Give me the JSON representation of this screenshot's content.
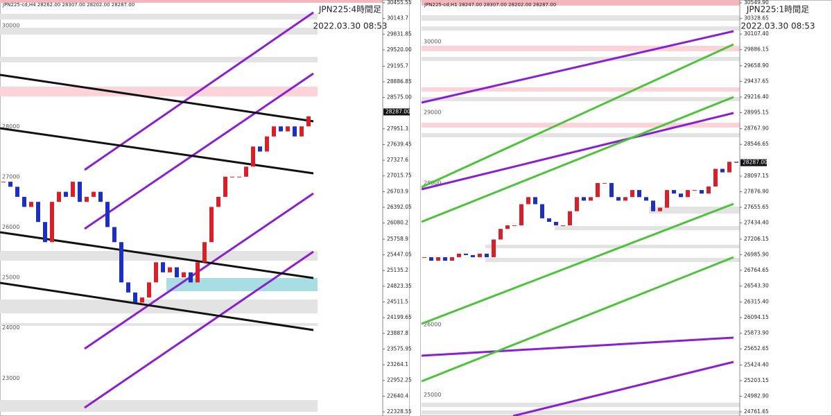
{
  "chart_data": [
    {
      "type": "candlestick",
      "header": "JPN225-cd,H4  28262.00 28307.00 28202.00 28287.00",
      "title": "JPN225:4時間足",
      "timestamp": "2022.03.30 08:53",
      "price_tag": {
        "value": 28287,
        "label": "28287.00"
      },
      "ylim": [
        22328.55,
        30455.55
      ],
      "yticks": [
        30455.55,
        30143.7,
        29831.85,
        {
          "value": 29520,
          "label": "29520.00"
        },
        29195.7,
        28886.85,
        {
          "value": 28575,
          "label": "28575.00"
        },
        27951.3,
        27639.45,
        27327.6,
        27015.75,
        26703.9,
        26392.05,
        26080.2,
        25758.9,
        25447.05,
        25135.2,
        24823.35,
        24511.5,
        24199.65,
        23887.8,
        23575.95,
        23264.1,
        22952.25,
        22640.4,
        22328.55
      ],
      "level_labels": [
        30000,
        28000,
        27000,
        26000,
        25000,
        24000,
        23000
      ],
      "up_color": "#d8202a",
      "down_color": "#1c2fbf",
      "values": [
        26900,
        26800,
        26600,
        26400,
        26500,
        26100,
        25700,
        26500,
        26700,
        26600,
        26900,
        26500,
        26600,
        26700,
        26500,
        26000,
        25700,
        24900,
        24700,
        24500,
        24600,
        24900,
        25300,
        25100,
        25200,
        25000,
        25100,
        24900,
        25300,
        25700,
        26400,
        26600,
        27000,
        27000,
        27000,
        27200,
        27600,
        27500,
        27800,
        28000,
        27900,
        28000,
        27800,
        28000,
        28200
      ]
    },
    {
      "type": "candlestick",
      "header": "JPN225-cd,H1  28247.00 28307.00 28202.00 28287.00",
      "title": "JPN225:1時間足",
      "timestamp": "2022.03.30 08:53",
      "price_tag": {
        "value": 28287,
        "label": "28287.00"
      },
      "ylim": [
        24761.65,
        30549.9
      ],
      "yticks": [
        {
          "value": 30549.9,
          "label": "30549.90"
        },
        30328.65,
        {
          "value": 30107.4,
          "label": "30107.40"
        },
        29886.15,
        {
          "value": 29658.9,
          "label": "29658.90"
        },
        29437.65,
        {
          "value": 29216.4,
          "label": "29216.40"
        },
        28995.15,
        {
          "value": 28767.9,
          "label": "28767.90"
        },
        28546.65,
        28097.15,
        {
          "value": 27876.9,
          "label": "27876.90"
        },
        27655.65,
        {
          "value": 27434.4,
          "label": "27434.40"
        },
        27206.15,
        {
          "value": 26985.9,
          "label": "26985.90"
        },
        26764.65,
        {
          "value": 26543.3,
          "label": "26543.30"
        },
        {
          "value": 26315.4,
          "label": "26315.40"
        },
        26094.15,
        {
          "value": 25873.9,
          "label": "25873.90"
        },
        25652.65,
        {
          "value": 25424.4,
          "label": "25424.40"
        },
        25203.15,
        {
          "value": 24982.9,
          "label": "24982.90"
        },
        24761.65
      ],
      "level_labels": [
        30000,
        29000,
        28000,
        26000,
        25000
      ],
      "up_color": "#d8202a",
      "down_color": "#1c2fbf",
      "values": [
        26950,
        26900,
        26950,
        26900,
        26950,
        27000,
        26980,
        26950,
        27000,
        26950,
        27200,
        27350,
        27400,
        27400,
        27700,
        27800,
        27700,
        27500,
        27450,
        27400,
        27400,
        27600,
        27800,
        27750,
        27800,
        28000,
        28000,
        27800,
        27750,
        27800,
        27900,
        27800,
        27750,
        27600,
        27650,
        27900,
        27850,
        27800,
        27900,
        27900,
        27850,
        27950,
        28200,
        28150,
        28300,
        28287
      ]
    }
  ]
}
